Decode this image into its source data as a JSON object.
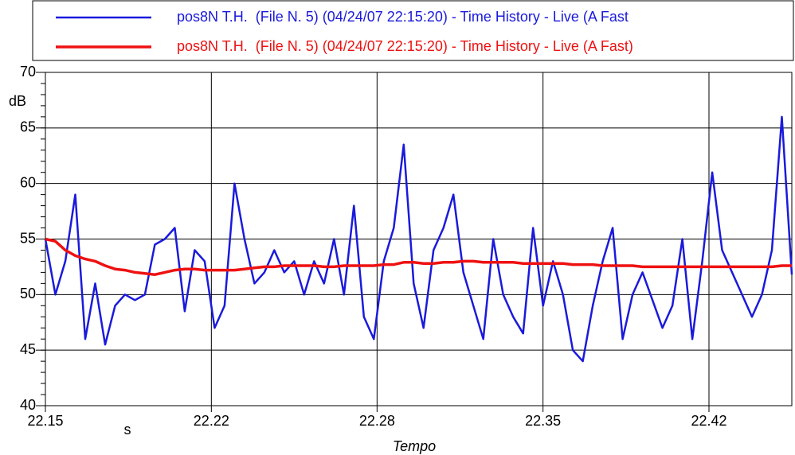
{
  "chart_data": {
    "type": "line",
    "y_label": "dB",
    "x_label": "Tempo",
    "x_unit": "s",
    "x": [
      22.15,
      22.154,
      22.158,
      22.162,
      22.166,
      22.17,
      22.174,
      22.178,
      22.182,
      22.186,
      22.19,
      22.194,
      22.198,
      22.202,
      22.206,
      22.21,
      22.214,
      22.218,
      22.222,
      22.226,
      22.23,
      22.234,
      22.238,
      22.242,
      22.246,
      22.25,
      22.254,
      22.258,
      22.262,
      22.266,
      22.27,
      22.274,
      22.278,
      22.282,
      22.286,
      22.29,
      22.294,
      22.298,
      22.302,
      22.306,
      22.31,
      22.314,
      22.318,
      22.322,
      22.326,
      22.33,
      22.334,
      22.338,
      22.342,
      22.346,
      22.35,
      22.354,
      22.358,
      22.362,
      22.366,
      22.37,
      22.374,
      22.378,
      22.382,
      22.386,
      22.39,
      22.394,
      22.398,
      22.402,
      22.406,
      22.41,
      22.414,
      22.418,
      22.422,
      22.426,
      22.43,
      22.434,
      22.438,
      22.442,
      22.446,
      22.45
    ],
    "series": [
      {
        "name": "pos8N T.H.  (File N. 5) (04/24/07 22:15:20) - Time History - Live (A Fast",
        "color": "#1a1adc",
        "values": [
          55,
          50,
          53,
          59,
          46,
          51,
          45.5,
          49,
          50,
          49.5,
          50,
          54.5,
          55,
          56,
          48.5,
          54,
          53,
          47,
          49,
          60,
          55,
          51,
          52,
          54,
          52,
          53,
          50,
          53,
          51,
          55,
          50,
          58,
          48,
          46,
          53,
          56,
          63.5,
          51,
          47,
          54,
          56,
          59,
          52,
          49,
          46,
          55,
          50,
          48,
          46.5,
          56,
          49,
          53,
          50,
          45,
          44,
          49,
          53,
          56,
          46,
          50,
          52,
          49.5,
          47,
          49,
          55,
          46,
          53,
          61,
          54,
          52,
          50,
          48,
          50,
          54,
          66,
          51.8
        ]
      },
      {
        "name": "pos8N T.H.  (File N. 5) (04/24/07 22:15:20) - Time History - Live (A Fast)",
        "color": "#ee1111",
        "values": [
          55,
          54.8,
          54,
          53.5,
          53.2,
          53,
          52.6,
          52.3,
          52.2,
          52,
          51.9,
          51.8,
          52,
          52.2,
          52.3,
          52.3,
          52.2,
          52.2,
          52.2,
          52.2,
          52.3,
          52.4,
          52.5,
          52.5,
          52.6,
          52.6,
          52.6,
          52.6,
          52.5,
          52.5,
          52.6,
          52.6,
          52.6,
          52.6,
          52.7,
          52.7,
          52.9,
          52.9,
          52.8,
          52.8,
          52.9,
          52.9,
          53,
          53,
          52.9,
          52.9,
          52.9,
          52.9,
          52.8,
          52.8,
          52.8,
          52.8,
          52.8,
          52.7,
          52.7,
          52.7,
          52.6,
          52.6,
          52.6,
          52.6,
          52.5,
          52.5,
          52.5,
          52.5,
          52.5,
          52.5,
          52.5,
          52.5,
          52.5,
          52.5,
          52.5,
          52.5,
          52.5,
          52.5,
          52.6,
          52.6
        ]
      }
    ],
    "xlim": [
      22.15,
      22.45
    ],
    "xticks": [
      {
        "value": 22.15,
        "label": "22.15"
      },
      {
        "value": 22.2167,
        "label": "22.22"
      },
      {
        "value": 22.2833,
        "label": "22.28"
      },
      {
        "value": 22.35,
        "label": "22.35"
      },
      {
        "value": 22.4167,
        "label": "22.42"
      }
    ],
    "ylim": [
      40,
      70
    ],
    "yticks": [
      40,
      45,
      50,
      55,
      60,
      65,
      70
    ],
    "grid": true
  }
}
